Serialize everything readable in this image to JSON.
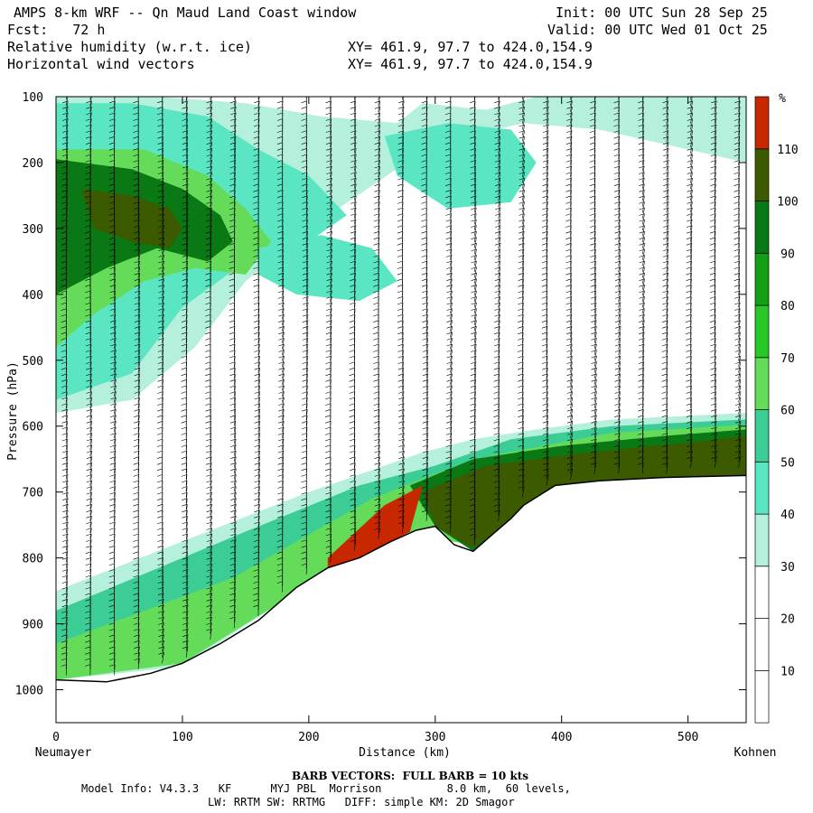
{
  "header": {
    "title": "AMPS 8-km WRF -- Qn Maud Land Coast window",
    "fcst": "Fcst:   72 h",
    "init": "Init: 00 UTC Sun 28 Sep 25",
    "valid": "Valid: 00 UTC Wed 01 Oct 25",
    "field1": "Relative humidity (w.r.t. ice)",
    "field2": "Horizontal wind vectors",
    "xy1": "XY= 461.9, 97.7 to 424.0,154.9",
    "xy2": "XY= 461.9, 97.7 to 424.0,154.9"
  },
  "footer": {
    "barb_note": "BARB VECTORS:  FULL BARB = 10 kts",
    "model_info": "Model Info: V4.3.3   KF      MYJ PBL  Morrison          8.0 km,  60 levels,",
    "model_info2": "LW: RRTM SW: RRTMG   DIFF: simple KM: 2D Smagor"
  },
  "colors": {
    "below_30": "#ffffff",
    "c30": "#b4f0dc",
    "c40": "#5ae6c3",
    "c50": "#3ccc96",
    "c60": "#64dc5a",
    "c70": "#28c828",
    "c80": "#14a014",
    "c90": "#0a7814",
    "c100": "#3c5a00",
    "c110": "#c82800",
    "barb": "#000000"
  },
  "chart_data": {
    "type": "heatmap",
    "title": "Relative humidity (w.r.t. ice)",
    "xlabel": "Distance (km)",
    "ylabel": "Pressure (hPa)",
    "xlim": [
      0,
      546
    ],
    "ylim": [
      1050,
      100
    ],
    "x_ticks": [
      0,
      100,
      200,
      300,
      400,
      500
    ],
    "y_ticks": [
      100,
      200,
      300,
      400,
      500,
      600,
      700,
      800,
      900,
      1000
    ],
    "x_endpoint_labels": {
      "left": "Neumayer",
      "right": "Kohnen"
    },
    "colorbar": {
      "unit": "%",
      "levels": [
        10,
        20,
        30,
        40,
        50,
        60,
        70,
        80,
        90,
        100,
        110
      ]
    },
    "terrain_surface_pressure": {
      "x": [
        0,
        40,
        75,
        100,
        130,
        160,
        190,
        215,
        240,
        265,
        285,
        300,
        315,
        330,
        345,
        360,
        370,
        395,
        430,
        480,
        546
      ],
      "p": [
        985,
        988,
        975,
        960,
        930,
        895,
        845,
        815,
        800,
        775,
        758,
        752,
        780,
        790,
        765,
        740,
        720,
        690,
        683,
        678,
        675
      ]
    },
    "rh_regions": [
      {
        "level": 30,
        "x": [
          0,
          200,
          290,
          330,
          380,
          440,
          546,
          546,
          380,
          300,
          200,
          100,
          0
        ],
        "p": [
          850,
          700,
          640,
          620,
          605,
          590,
          580,
          675,
          700,
          750,
          840,
          965,
          985
        ]
      },
      {
        "level": 50,
        "x": [
          0,
          150,
          240,
          300,
          360,
          440,
          546,
          546,
          380,
          300,
          220,
          150,
          0
        ],
        "p": [
          880,
          760,
          690,
          660,
          620,
          600,
          590,
          675,
          700,
          752,
          810,
          895,
          985
        ]
      },
      {
        "level": 60,
        "x": [
          0,
          140,
          250,
          330,
          440,
          546,
          546,
          330,
          280,
          230,
          100,
          0
        ],
        "p": [
          930,
          830,
          710,
          650,
          610,
          598,
          675,
          780,
          765,
          805,
          960,
          985
        ]
      },
      {
        "level": 90,
        "x": [
          280,
          330,
          400,
          480,
          546,
          546,
          480,
          400,
          330,
          300
        ],
        "p": [
          690,
          650,
          630,
          615,
          605,
          675,
          678,
          685,
          790,
          752
        ]
      },
      {
        "level": 100,
        "x": [
          290,
          340,
          420,
          500,
          546,
          546,
          480,
          400,
          330,
          300
        ],
        "p": [
          700,
          660,
          640,
          625,
          615,
          675,
          678,
          688,
          785,
          752
        ]
      },
      {
        "level": 110,
        "x": [
          215,
          260,
          290,
          280,
          240,
          215
        ],
        "p": [
          800,
          720,
          690,
          760,
          800,
          820
        ]
      },
      {
        "level": 30,
        "x": [
          0,
          80,
          150,
          210,
          270,
          290,
          340,
          380,
          480,
          546,
          546,
          430,
          370,
          300,
          200,
          150,
          110,
          60,
          0
        ],
        "p": [
          100,
          100,
          110,
          130,
          140,
          110,
          120,
          100,
          100,
          100,
          200,
          150,
          140,
          170,
          300,
          380,
          480,
          560,
          580
        ]
      },
      {
        "level": 40,
        "x": [
          0,
          60,
          120,
          160,
          200,
          230,
          200,
          150,
          100,
          60,
          0
        ],
        "p": [
          110,
          110,
          130,
          180,
          220,
          280,
          320,
          350,
          420,
          520,
          560
        ]
      },
      {
        "level": 60,
        "x": [
          0,
          70,
          120,
          150,
          170,
          150,
          110,
          70,
          30,
          0
        ],
        "p": [
          180,
          180,
          220,
          270,
          320,
          370,
          360,
          380,
          430,
          480
        ]
      },
      {
        "level": 90,
        "x": [
          0,
          60,
          100,
          130,
          140,
          120,
          80,
          40,
          0
        ],
        "p": [
          195,
          210,
          240,
          280,
          320,
          350,
          330,
          360,
          400
        ]
      },
      {
        "level": 100,
        "x": [
          20,
          60,
          90,
          100,
          90,
          60,
          30
        ],
        "p": [
          240,
          250,
          270,
          300,
          330,
          320,
          300
        ]
      },
      {
        "level": 40,
        "x": [
          260,
          310,
          360,
          380,
          360,
          310,
          270
        ],
        "p": [
          160,
          140,
          150,
          200,
          260,
          270,
          220
        ]
      },
      {
        "level": 40,
        "x": [
          160,
          210,
          250,
          270,
          240,
          190,
          160
        ],
        "p": [
          330,
          310,
          330,
          380,
          410,
          400,
          370
        ]
      }
    ]
  }
}
